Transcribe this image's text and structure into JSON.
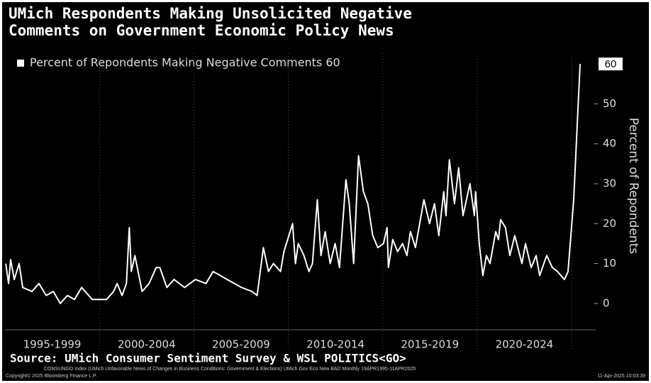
{
  "chart_data": {
    "type": "line",
    "title_lines": [
      "UMich Respondents Making Unsolicited Negative",
      "Comments on Government Economic Policy News"
    ],
    "y_axis_label": "Percent of Repondents",
    "source": "Source: UMich Consumer Sentiment Survey & WSL POLITICS<GO>",
    "footnote": "CONSUNGO Index (UMich Unfavorable News of Changes in Business Conditions: Government & Elections) UMich Gov Eco New BAD  Monthly 19APR1995-11APR2025",
    "copyright": "Copyright© 2025 Bloomberg Finance L.P.",
    "timestamp": "11-Apr-2025 10:03:39",
    "xlim": [
      1995,
      2026.2
    ],
    "ylim": [
      -6.6,
      62.7
    ],
    "yticks": [
      0,
      10,
      20,
      30,
      40,
      50
    ],
    "xticks": [
      {
        "value": 1997.5,
        "label": "1995-1999"
      },
      {
        "value": 2002.5,
        "label": "2000-2004"
      },
      {
        "value": 2007.5,
        "label": "2005-2009"
      },
      {
        "value": 2012.5,
        "label": "2010-2014"
      },
      {
        "value": 2017.5,
        "label": "2015-2019"
      },
      {
        "value": 2022.5,
        "label": "2020-2024"
      }
    ],
    "xgrid": [
      2000,
      2005,
      2010,
      2015,
      2020,
      2025
    ],
    "x": [
      1995.04,
      1995.19,
      1995.3,
      1995.49,
      1995.75,
      1995.94,
      1996.43,
      1996.8,
      1997.18,
      1997.56,
      1997.93,
      1998.31,
      1998.68,
      1999.06,
      1999.62,
      2000.38,
      2000.75,
      2000.94,
      2001.2,
      2001.43,
      2001.58,
      2001.69,
      2001.88,
      2002.26,
      2002.63,
      2003.01,
      2003.2,
      2003.57,
      2003.95,
      2004.51,
      2005.08,
      2005.64,
      2006.02,
      2006.77,
      2007.52,
      2008.08,
      2008.35,
      2008.68,
      2008.95,
      2009.21,
      2009.59,
      2009.77,
      2010.23,
      2010.38,
      2010.53,
      2010.83,
      2011.09,
      2011.28,
      2011.54,
      2011.73,
      2011.95,
      2012.22,
      2012.48,
      2012.71,
      2013.05,
      2013.23,
      2013.46,
      2013.72,
      2013.98,
      2014.21,
      2014.47,
      2014.74,
      2015.04,
      2015.23,
      2015.3,
      2015.53,
      2015.79,
      2016.05,
      2016.28,
      2016.47,
      2016.73,
      2017.18,
      2017.48,
      2017.74,
      2017.97,
      2018.23,
      2018.35,
      2018.53,
      2018.8,
      2019.02,
      2019.25,
      2019.62,
      2019.85,
      2019.92,
      2020.11,
      2020.3,
      2020.49,
      2020.68,
      2020.98,
      2021.13,
      2021.24,
      2021.5,
      2021.73,
      2021.99,
      2022.37,
      2022.56,
      2022.86,
      2023.12,
      2023.31,
      2023.68,
      2023.98,
      2024.25,
      2024.44,
      2024.62,
      2024.81,
      2025.11,
      2025.45
    ],
    "series": [
      {
        "name": "Percent of Repondents Making Negative Comments 60",
        "color": "#ffffff",
        "values": [
          10,
          5,
          11,
          6,
          10,
          4,
          3,
          5,
          2,
          3,
          0,
          2,
          1,
          4,
          1,
          1,
          3,
          5,
          2,
          5,
          19,
          8,
          12,
          3,
          5,
          9,
          9,
          4,
          6,
          4,
          6,
          5,
          8,
          6,
          4,
          3,
          2,
          14,
          8,
          10,
          8,
          13,
          20,
          10,
          15,
          12,
          8,
          10,
          26,
          12,
          18,
          10,
          15,
          9,
          31,
          25,
          10,
          37,
          28,
          25,
          17,
          14,
          15,
          19,
          9,
          16,
          13,
          15,
          12,
          18,
          14,
          26,
          20,
          25,
          17,
          28,
          22,
          36,
          25,
          34,
          22,
          30,
          22,
          28,
          15,
          7,
          12,
          10,
          18,
          16,
          21,
          19,
          12,
          17,
          10,
          15,
          9,
          12,
          7,
          12,
          9,
          8,
          7,
          6,
          8,
          26,
          60
        ]
      }
    ]
  }
}
